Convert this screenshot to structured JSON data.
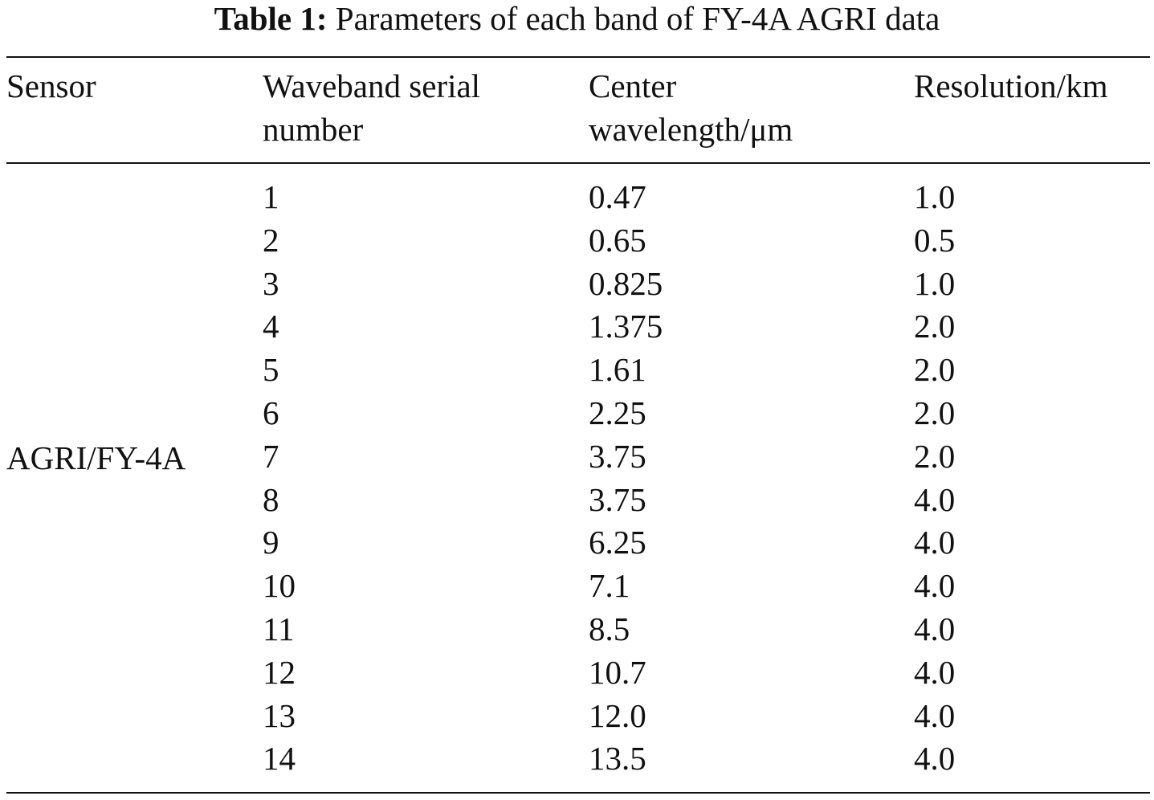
{
  "caption": {
    "label": "Table 1:",
    "text": "Parameters of each band of FY-4A AGRI data"
  },
  "table": {
    "headers": {
      "sensor": "Sensor",
      "band_line1": "Waveband serial",
      "band_line2": "number",
      "wave_line1": "Center",
      "wave_line2": "wavelength/μm",
      "resolution": "Resolution/km"
    },
    "sensor": "AGRI/FY-4A",
    "rows": [
      {
        "band": "1",
        "wavelength": "0.47",
        "resolution": "1.0"
      },
      {
        "band": "2",
        "wavelength": "0.65",
        "resolution": "0.5"
      },
      {
        "band": "3",
        "wavelength": "0.825",
        "resolution": "1.0"
      },
      {
        "band": "4",
        "wavelength": "1.375",
        "resolution": "2.0"
      },
      {
        "band": "5",
        "wavelength": "1.61",
        "resolution": "2.0"
      },
      {
        "band": "6",
        "wavelength": "2.25",
        "resolution": "2.0"
      },
      {
        "band": "7",
        "wavelength": "3.75",
        "resolution": "2.0"
      },
      {
        "band": "8",
        "wavelength": "3.75",
        "resolution": "4.0"
      },
      {
        "band": "9",
        "wavelength": "6.25",
        "resolution": "4.0"
      },
      {
        "band": "10",
        "wavelength": "7.1",
        "resolution": "4.0"
      },
      {
        "band": "11",
        "wavelength": "8.5",
        "resolution": "4.0"
      },
      {
        "band": "12",
        "wavelength": "10.7",
        "resolution": "4.0"
      },
      {
        "band": "13",
        "wavelength": "12.0",
        "resolution": "4.0"
      },
      {
        "band": "14",
        "wavelength": "13.5",
        "resolution": "4.0"
      }
    ]
  }
}
